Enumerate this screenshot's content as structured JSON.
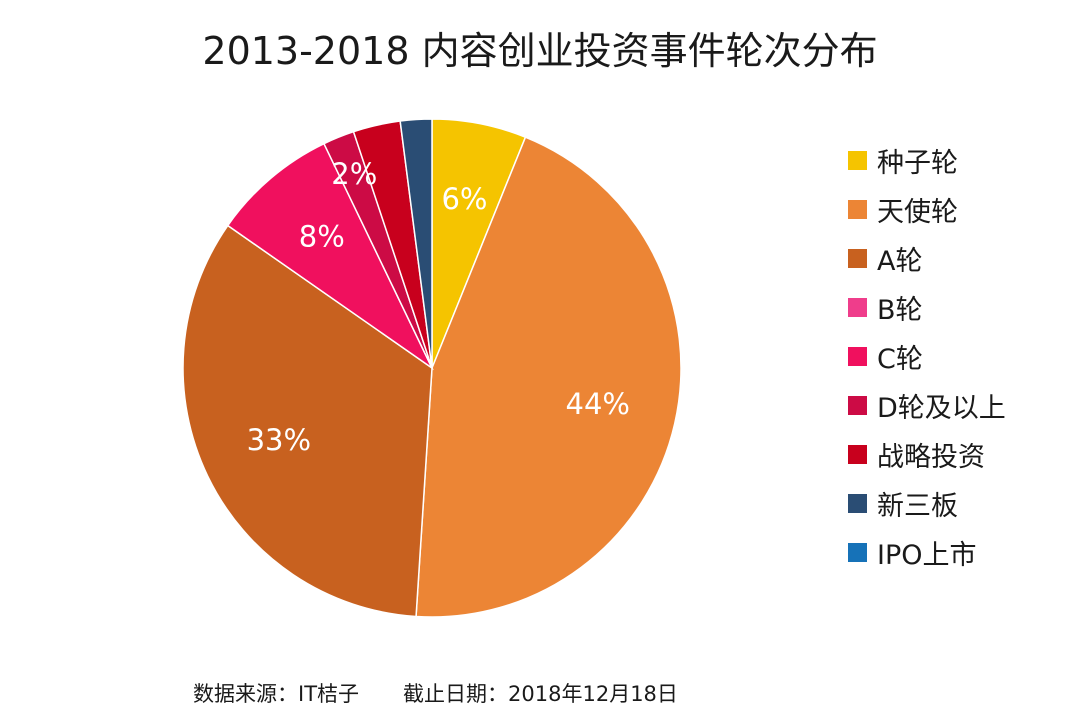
{
  "chart_data": {
    "type": "pie",
    "title": "2013-2018 内容创业投资事件轮次分布",
    "categories": [
      "种子轮",
      "天使轮",
      "A轮",
      "B轮",
      "C轮",
      "D轮及以上",
      "战略投资",
      "新三板",
      "IPO上市"
    ],
    "values": [
      6,
      44,
      33,
      0,
      8,
      2,
      3,
      2,
      0
    ],
    "labels": [
      "6%",
      "44%",
      "33%",
      "",
      "8%",
      "2%",
      "",
      "",
      ""
    ],
    "colors": [
      "#f5c400",
      "#ec8535",
      "#c8611f",
      "#ef3d8b",
      "#f0105e",
      "#cc0b45",
      "#c8001d",
      "#2a4d74",
      "#1672b8"
    ],
    "legend_position": "right"
  },
  "footer": {
    "source": "数据来源：IT桔子",
    "cutoff": "截止日期：2018年12月18日"
  }
}
